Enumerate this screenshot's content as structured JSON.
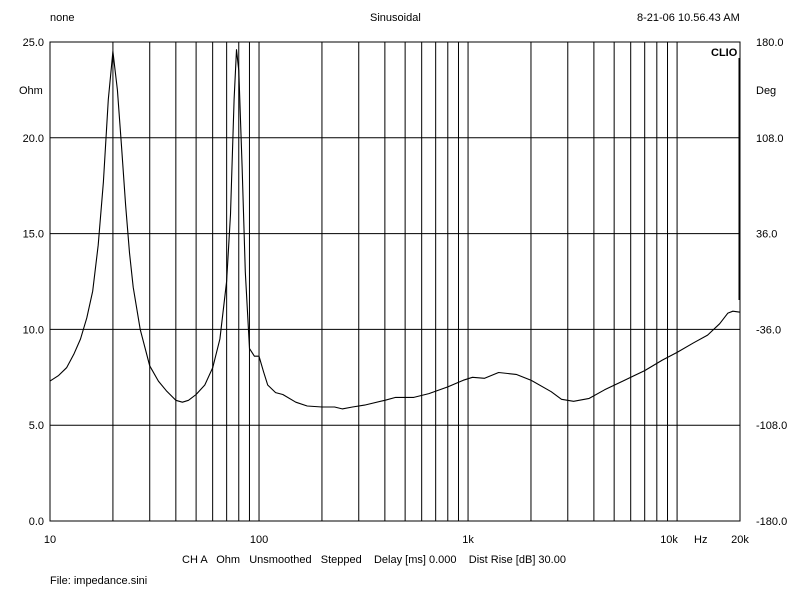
{
  "header": {
    "left": "none",
    "center": "Sinusoidal",
    "right": "8-21-06 10.56.43 AM"
  },
  "brand": "CLIO",
  "footer": {
    "settings": "CH A   Ohm   Unsmoothed   Stepped    Delay [ms] 0.000    Dist Rise [dB] 30.00",
    "file": "File: impedance.sini"
  },
  "chart_data": {
    "type": "line",
    "x_scale": "log",
    "xlim": [
      10,
      20000
    ],
    "ylim": [
      0,
      25
    ],
    "y2lim": [
      -180,
      180
    ],
    "ylabel": "Ohm",
    "y2label": "Deg",
    "xunit": "Hz",
    "grid": true,
    "line_color": "#000000",
    "x_tick_labels": [
      {
        "x": 10,
        "label": "10"
      },
      {
        "x": 100,
        "label": "100"
      },
      {
        "x": 1000,
        "label": "1k"
      },
      {
        "x": 10000,
        "label": "10k"
      },
      {
        "x": 20000,
        "label": "20k"
      }
    ],
    "y_tick_labels": [
      {
        "y": 0,
        "label": "0.0"
      },
      {
        "y": 5,
        "label": "5.0"
      },
      {
        "y": 10,
        "label": "10.0"
      },
      {
        "y": 15,
        "label": "15.0"
      },
      {
        "y": 20,
        "label": "20.0"
      },
      {
        "y": 25,
        "label": "25.0"
      }
    ],
    "y2_tick_labels": [
      {
        "y": -180,
        "label": "-180.0"
      },
      {
        "y": -108,
        "label": "-108.0"
      },
      {
        "y": -36,
        "label": "-36.0"
      },
      {
        "y": 36,
        "label": "36.0"
      },
      {
        "y": 108,
        "label": "108.0"
      },
      {
        "y": 180,
        "label": "180.0"
      }
    ],
    "series": [
      {
        "points": [
          [
            10,
            7.3
          ],
          [
            11,
            7.6
          ],
          [
            12,
            8.0
          ],
          [
            13,
            8.7
          ],
          [
            14,
            9.5
          ],
          [
            15,
            10.6
          ],
          [
            16,
            12.0
          ],
          [
            17,
            14.4
          ],
          [
            18,
            17.7
          ],
          [
            19,
            22.0
          ],
          [
            20,
            24.5
          ],
          [
            21,
            22.5
          ],
          [
            22,
            19.5
          ],
          [
            23,
            16.5
          ],
          [
            24,
            14.0
          ],
          [
            25,
            12.2
          ],
          [
            27,
            10.0
          ],
          [
            30,
            8.1
          ],
          [
            33,
            7.3
          ],
          [
            36,
            6.8
          ],
          [
            40,
            6.3
          ],
          [
            43,
            6.2
          ],
          [
            46,
            6.3
          ],
          [
            50,
            6.6
          ],
          [
            55,
            7.1
          ],
          [
            60,
            8.0
          ],
          [
            65,
            9.5
          ],
          [
            70,
            12.5
          ],
          [
            73,
            16.0
          ],
          [
            76,
            22.0
          ],
          [
            78,
            24.6
          ],
          [
            80,
            23.5
          ],
          [
            83,
            18.5
          ],
          [
            86,
            13.0
          ],
          [
            90,
            9.0
          ],
          [
            95,
            8.6
          ],
          [
            100,
            8.6
          ],
          [
            105,
            7.8
          ],
          [
            110,
            7.1
          ],
          [
            120,
            6.7
          ],
          [
            130,
            6.6
          ],
          [
            150,
            6.2
          ],
          [
            170,
            6.0
          ],
          [
            200,
            5.95
          ],
          [
            230,
            5.95
          ],
          [
            250,
            5.85
          ],
          [
            280,
            5.95
          ],
          [
            320,
            6.05
          ],
          [
            400,
            6.3
          ],
          [
            450,
            6.45
          ],
          [
            550,
            6.45
          ],
          [
            650,
            6.65
          ],
          [
            800,
            7.0
          ],
          [
            950,
            7.35
          ],
          [
            1050,
            7.5
          ],
          [
            1200,
            7.45
          ],
          [
            1400,
            7.75
          ],
          [
            1700,
            7.65
          ],
          [
            2000,
            7.35
          ],
          [
            2500,
            6.75
          ],
          [
            2800,
            6.35
          ],
          [
            3200,
            6.25
          ],
          [
            3800,
            6.4
          ],
          [
            4500,
            6.85
          ],
          [
            5500,
            7.3
          ],
          [
            7000,
            7.85
          ],
          [
            8500,
            8.4
          ],
          [
            10000,
            8.8
          ],
          [
            12000,
            9.3
          ],
          [
            14000,
            9.7
          ],
          [
            16000,
            10.3
          ],
          [
            17500,
            10.85
          ],
          [
            18500,
            10.95
          ],
          [
            20000,
            10.9
          ]
        ]
      }
    ]
  }
}
